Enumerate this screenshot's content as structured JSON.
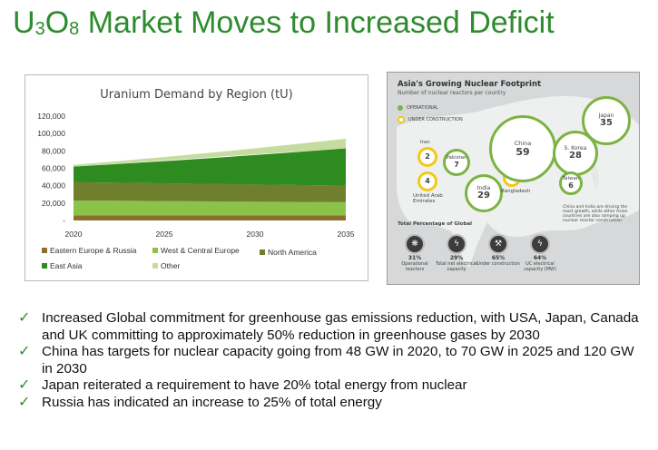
{
  "slide": {
    "title_prefix": "U",
    "title_sub1": "3",
    "title_mid": "O",
    "title_sub2": "8",
    "title_rest": " Market Moves to Increased Deficit"
  },
  "chart_data": {
    "type": "area",
    "title": "Uranium Demand by Region (tU)",
    "x": [
      2020,
      2035
    ],
    "x_ticks": [
      "2020",
      "2025",
      "2030",
      "2035"
    ],
    "y_ticks": [
      "120,000",
      "100,000",
      "80,000",
      "60,000",
      "40,000",
      "20,000",
      "-"
    ],
    "ylim": [
      0,
      120000
    ],
    "xlim": [
      2020,
      2035
    ],
    "series": [
      {
        "name": "Eastern Europe & Russia",
        "values": [
          6000,
          6000
        ],
        "color": "#8a6f2e"
      },
      {
        "name": "West & Central Europe",
        "values": [
          17000,
          15000
        ],
        "color": "#8bc34a"
      },
      {
        "name": "North America",
        "values": [
          21000,
          19000
        ],
        "color": "#6f7f2d"
      },
      {
        "name": "East Asia",
        "values": [
          18000,
          43000
        ],
        "color": "#2e8b1f"
      },
      {
        "name": "Other",
        "values": [
          2000,
          11000
        ],
        "color": "#c5dca0"
      }
    ],
    "legend": "bottom"
  },
  "map": {
    "title": "Asia's Growing Nuclear Footprint",
    "subtitle": "Number of nuclear reactors per country",
    "legend_operational": "OPERATIONAL",
    "legend_construction": "UNDER CONSTRUCTION",
    "note": "China and India are driving the most growth, while other Asian countries are also ramping up nuclear reactor construction.",
    "total_label": "Total Percentage of Global",
    "countries": [
      {
        "name": "Iran",
        "value": "2"
      },
      {
        "name": "Pakistan",
        "value": "7"
      },
      {
        "name": "United Arab Emirates",
        "value": "4"
      },
      {
        "name": "India",
        "value": "29"
      },
      {
        "name": "Bangladesh",
        "value": "2"
      },
      {
        "name": "China",
        "value": "59"
      },
      {
        "name": "S. Korea",
        "value": "28"
      },
      {
        "name": "Japan",
        "value": "35"
      },
      {
        "name": "Taiwan",
        "value": "6"
      }
    ],
    "stats": [
      {
        "icon": "❋",
        "value": "31%",
        "label": "Operational reactors"
      },
      {
        "icon": "ϟ",
        "value": "29%",
        "label": "Total net electrical capacity"
      },
      {
        "icon": "⚒",
        "value": "65%",
        "label": "Under construction"
      },
      {
        "icon": "ϟ",
        "value": "64%",
        "label": "UC electrical capacity (MW)"
      }
    ],
    "colors": {
      "operational": "#7cb342",
      "construction": "#f2c916"
    }
  },
  "bullets": [
    "Increased Global commitment for greenhouse gas emissions reduction, with USA, Japan, Canada and UK committing to approximately 50% reduction in greenhouse gases by 2030",
    "China has targets for nuclear capacity going from 48 GW in 2020, to 70 GW in 2025 and 120 GW in 2030",
    "Japan reiterated a requirement to have 20% total energy from nuclear",
    "Russia has indicated an increase to 25% of total energy"
  ]
}
